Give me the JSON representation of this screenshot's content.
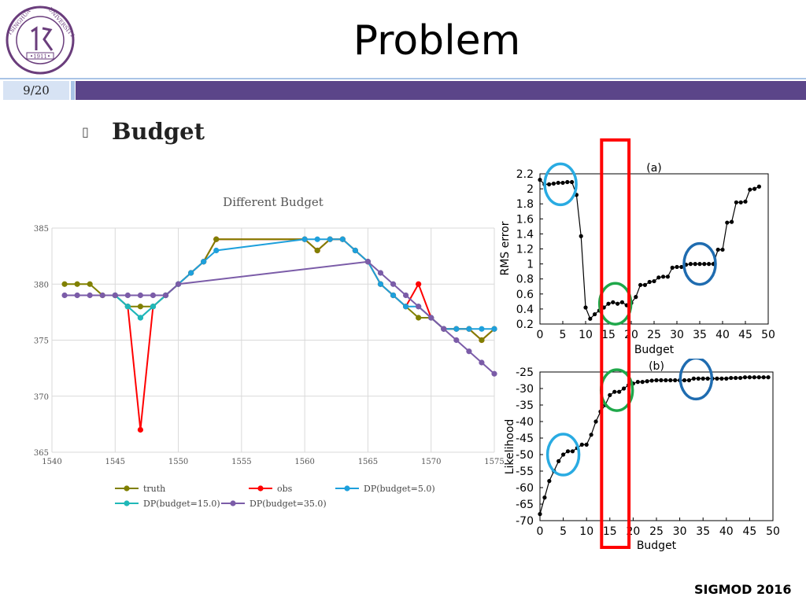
{
  "slide": {
    "title": "Problem",
    "page": "9/20",
    "bullet_symbol": "▯",
    "bullet": "Budget",
    "footer": "SIGMOD 2016",
    "logo_top": "TSINGHUA",
    "logo_right": "UNIVERSITY",
    "logo_year": "•1911•"
  },
  "colors": {
    "accent_bar": "#5b4589",
    "light_bar": "#a9c4e6",
    "page_box": "#d7e3f4"
  },
  "chart_data": [
    {
      "type": "line",
      "title": "Different Budget",
      "xlim": [
        1540,
        1575
      ],
      "ylim": [
        365,
        385
      ],
      "xticks": [
        1540,
        1545,
        1550,
        1555,
        1560,
        1565,
        1570,
        1575
      ],
      "yticks": [
        365,
        370,
        375,
        380,
        385
      ],
      "legend": "bottom",
      "grid": true,
      "series": [
        {
          "name": "truth",
          "color": "#808000",
          "x": [
            1541,
            1542,
            1543,
            1544,
            1545,
            1546,
            1547,
            1548,
            1549,
            1550,
            1551,
            1552,
            1553,
            1560,
            1561,
            1562,
            1563,
            1564,
            1565,
            1566,
            1567,
            1568,
            1569,
            1570,
            1571,
            1572,
            1573,
            1574,
            1575
          ],
          "y": [
            380,
            380,
            380,
            379,
            379,
            378,
            378,
            378,
            379,
            380,
            381,
            382,
            384,
            384,
            383,
            384,
            384,
            383,
            382,
            380,
            379,
            378,
            377,
            377,
            376,
            376,
            376,
            375,
            376
          ]
        },
        {
          "name": "obs",
          "color": "#ff0000",
          "x": [
            1545,
            1546,
            1547,
            1548,
            1549,
            1550,
            1551,
            1552,
            1553,
            1560,
            1561,
            1562,
            1563,
            1564,
            1565,
            1566,
            1567,
            1568,
            1569,
            1570,
            1571,
            1572,
            1573,
            1574,
            1575
          ],
          "y": [
            379,
            378,
            367,
            378,
            379,
            380,
            381,
            382,
            384,
            384,
            383,
            384,
            384,
            383,
            382,
            380,
            379,
            378,
            380,
            377,
            376,
            376,
            376,
            375,
            376
          ]
        },
        {
          "name": "DP(budget=5.0)",
          "color": "#1ea0dc",
          "x": [
            1545,
            1546,
            1547,
            1548,
            1549,
            1550,
            1551,
            1552,
            1553,
            1560,
            1561,
            1562,
            1563,
            1564,
            1565,
            1566,
            1567,
            1568,
            1569,
            1570,
            1571,
            1572,
            1573,
            1574,
            1575
          ],
          "y": [
            379,
            378,
            377,
            378,
            379,
            380,
            381,
            382,
            383,
            384,
            384,
            384,
            384,
            383,
            382,
            380,
            379,
            378,
            378,
            377,
            376,
            376,
            376,
            376,
            376
          ]
        },
        {
          "name": "DP(budget=15.0)",
          "color": "#20b8b8",
          "x": [
            1545,
            1546,
            1547,
            1548,
            1549,
            1550
          ],
          "y": [
            379,
            378,
            377,
            378,
            379,
            380
          ]
        },
        {
          "name": "DP(budget=35.0)",
          "color": "#7b5ca8",
          "x": [
            1541,
            1542,
            1543,
            1544,
            1545,
            1546,
            1547,
            1548,
            1549,
            1550,
            1565,
            1566,
            1567,
            1568,
            1569,
            1570,
            1571,
            1572,
            1573,
            1574,
            1575
          ],
          "y": [
            379,
            379,
            379,
            379,
            379,
            379,
            379,
            379,
            379,
            380,
            382,
            381,
            380,
            379,
            378,
            377,
            376,
            375,
            374,
            373,
            372
          ]
        }
      ]
    },
    {
      "type": "line",
      "title": "(a)",
      "xlabel": "Budget",
      "ylabel": "RMS error",
      "xlim": [
        0,
        50
      ],
      "ylim": [
        0.2,
        2.2
      ],
      "xticks": [
        0,
        5,
        10,
        15,
        20,
        25,
        30,
        35,
        40,
        45,
        50
      ],
      "yticks": [
        0.2,
        0.4,
        0.6,
        0.8,
        1,
        1.2,
        1.4,
        1.6,
        1.8,
        2,
        2.2
      ],
      "series": [
        {
          "color": "#000000",
          "x": [
            0,
            1,
            2,
            3,
            4,
            5,
            6,
            7,
            8,
            9,
            10,
            11,
            12,
            13,
            14,
            15,
            16,
            17,
            18,
            19,
            20,
            21,
            22,
            23,
            24,
            25,
            26,
            27,
            28,
            29,
            30,
            31,
            32,
            33,
            34,
            35,
            36,
            37,
            38,
            39,
            40,
            41,
            42,
            43,
            44,
            45,
            46,
            47,
            48
          ],
          "y": [
            2.12,
            2.06,
            2.06,
            2.07,
            2.08,
            2.08,
            2.09,
            2.09,
            1.92,
            1.37,
            0.42,
            0.27,
            0.33,
            0.38,
            0.42,
            0.47,
            0.49,
            0.47,
            0.49,
            0.45,
            0.48,
            0.56,
            0.72,
            0.72,
            0.76,
            0.77,
            0.82,
            0.83,
            0.83,
            0.95,
            0.96,
            0.96,
            0.99,
            1.0,
            1.0,
            1.0,
            1.0,
            1.0,
            1.0,
            1.19,
            1.19,
            1.55,
            1.56,
            1.82,
            1.82,
            1.83,
            1.99,
            2.0,
            2.03
          ]
        }
      ],
      "annotations": [
        {
          "shape": "ellipse",
          "color": "#29abe2",
          "cx": 4.5,
          "cy": 2.06
        },
        {
          "shape": "ellipse",
          "color": "#1fa84a",
          "cx": 16.5,
          "cy": 0.47
        },
        {
          "shape": "ellipse",
          "color": "#1f6cb0",
          "cx": 35,
          "cy": 1.0
        }
      ]
    },
    {
      "type": "line",
      "title": "(b)",
      "xlabel": "Budget",
      "ylabel": "Likelihood",
      "xlim": [
        0,
        50
      ],
      "ylim": [
        -70,
        -25
      ],
      "xticks": [
        0,
        5,
        10,
        15,
        20,
        25,
        30,
        35,
        40,
        45,
        50
      ],
      "yticks": [
        -25,
        -30,
        -35,
        -40,
        -45,
        -50,
        -55,
        -60,
        -65,
        -70
      ],
      "series": [
        {
          "color": "#000000",
          "x": [
            0,
            1,
            2,
            3,
            4,
            5,
            6,
            7,
            8,
            9,
            10,
            11,
            12,
            13,
            14,
            15,
            16,
            17,
            18,
            19,
            20,
            21,
            22,
            23,
            24,
            25,
            26,
            27,
            28,
            29,
            30,
            31,
            32,
            33,
            34,
            35,
            36,
            37,
            38,
            39,
            40,
            41,
            42,
            43,
            44,
            45,
            46,
            47,
            48,
            49
          ],
          "y": [
            -68,
            -63,
            -58,
            -55,
            -52,
            -50,
            -49,
            -49,
            -48,
            -47,
            -47,
            -44,
            -40,
            -37,
            -35,
            -32,
            -31,
            -31,
            -30,
            -29,
            -28.5,
            -28,
            -28,
            -27.8,
            -27.6,
            -27.5,
            -27.5,
            -27.5,
            -27.5,
            -27.5,
            -27.5,
            -27.5,
            -27.5,
            -27,
            -27,
            -27,
            -27,
            -27,
            -27,
            -27,
            -27,
            -26.8,
            -26.8,
            -26.8,
            -26.6,
            -26.6,
            -26.6,
            -26.6,
            -26.6,
            -26.6
          ]
        }
      ],
      "annotations": [
        {
          "shape": "ellipse",
          "color": "#29abe2",
          "cx": 5,
          "cy": -50
        },
        {
          "shape": "ellipse",
          "color": "#1fa84a",
          "cx": 16.5,
          "cy": -30.5
        },
        {
          "shape": "ellipse",
          "color": "#1f6cb0",
          "cx": 33.5,
          "cy": -27
        }
      ]
    }
  ],
  "highlight_box": {
    "color": "#ff0000",
    "x_range": [
      13.5,
      19.5
    ]
  }
}
